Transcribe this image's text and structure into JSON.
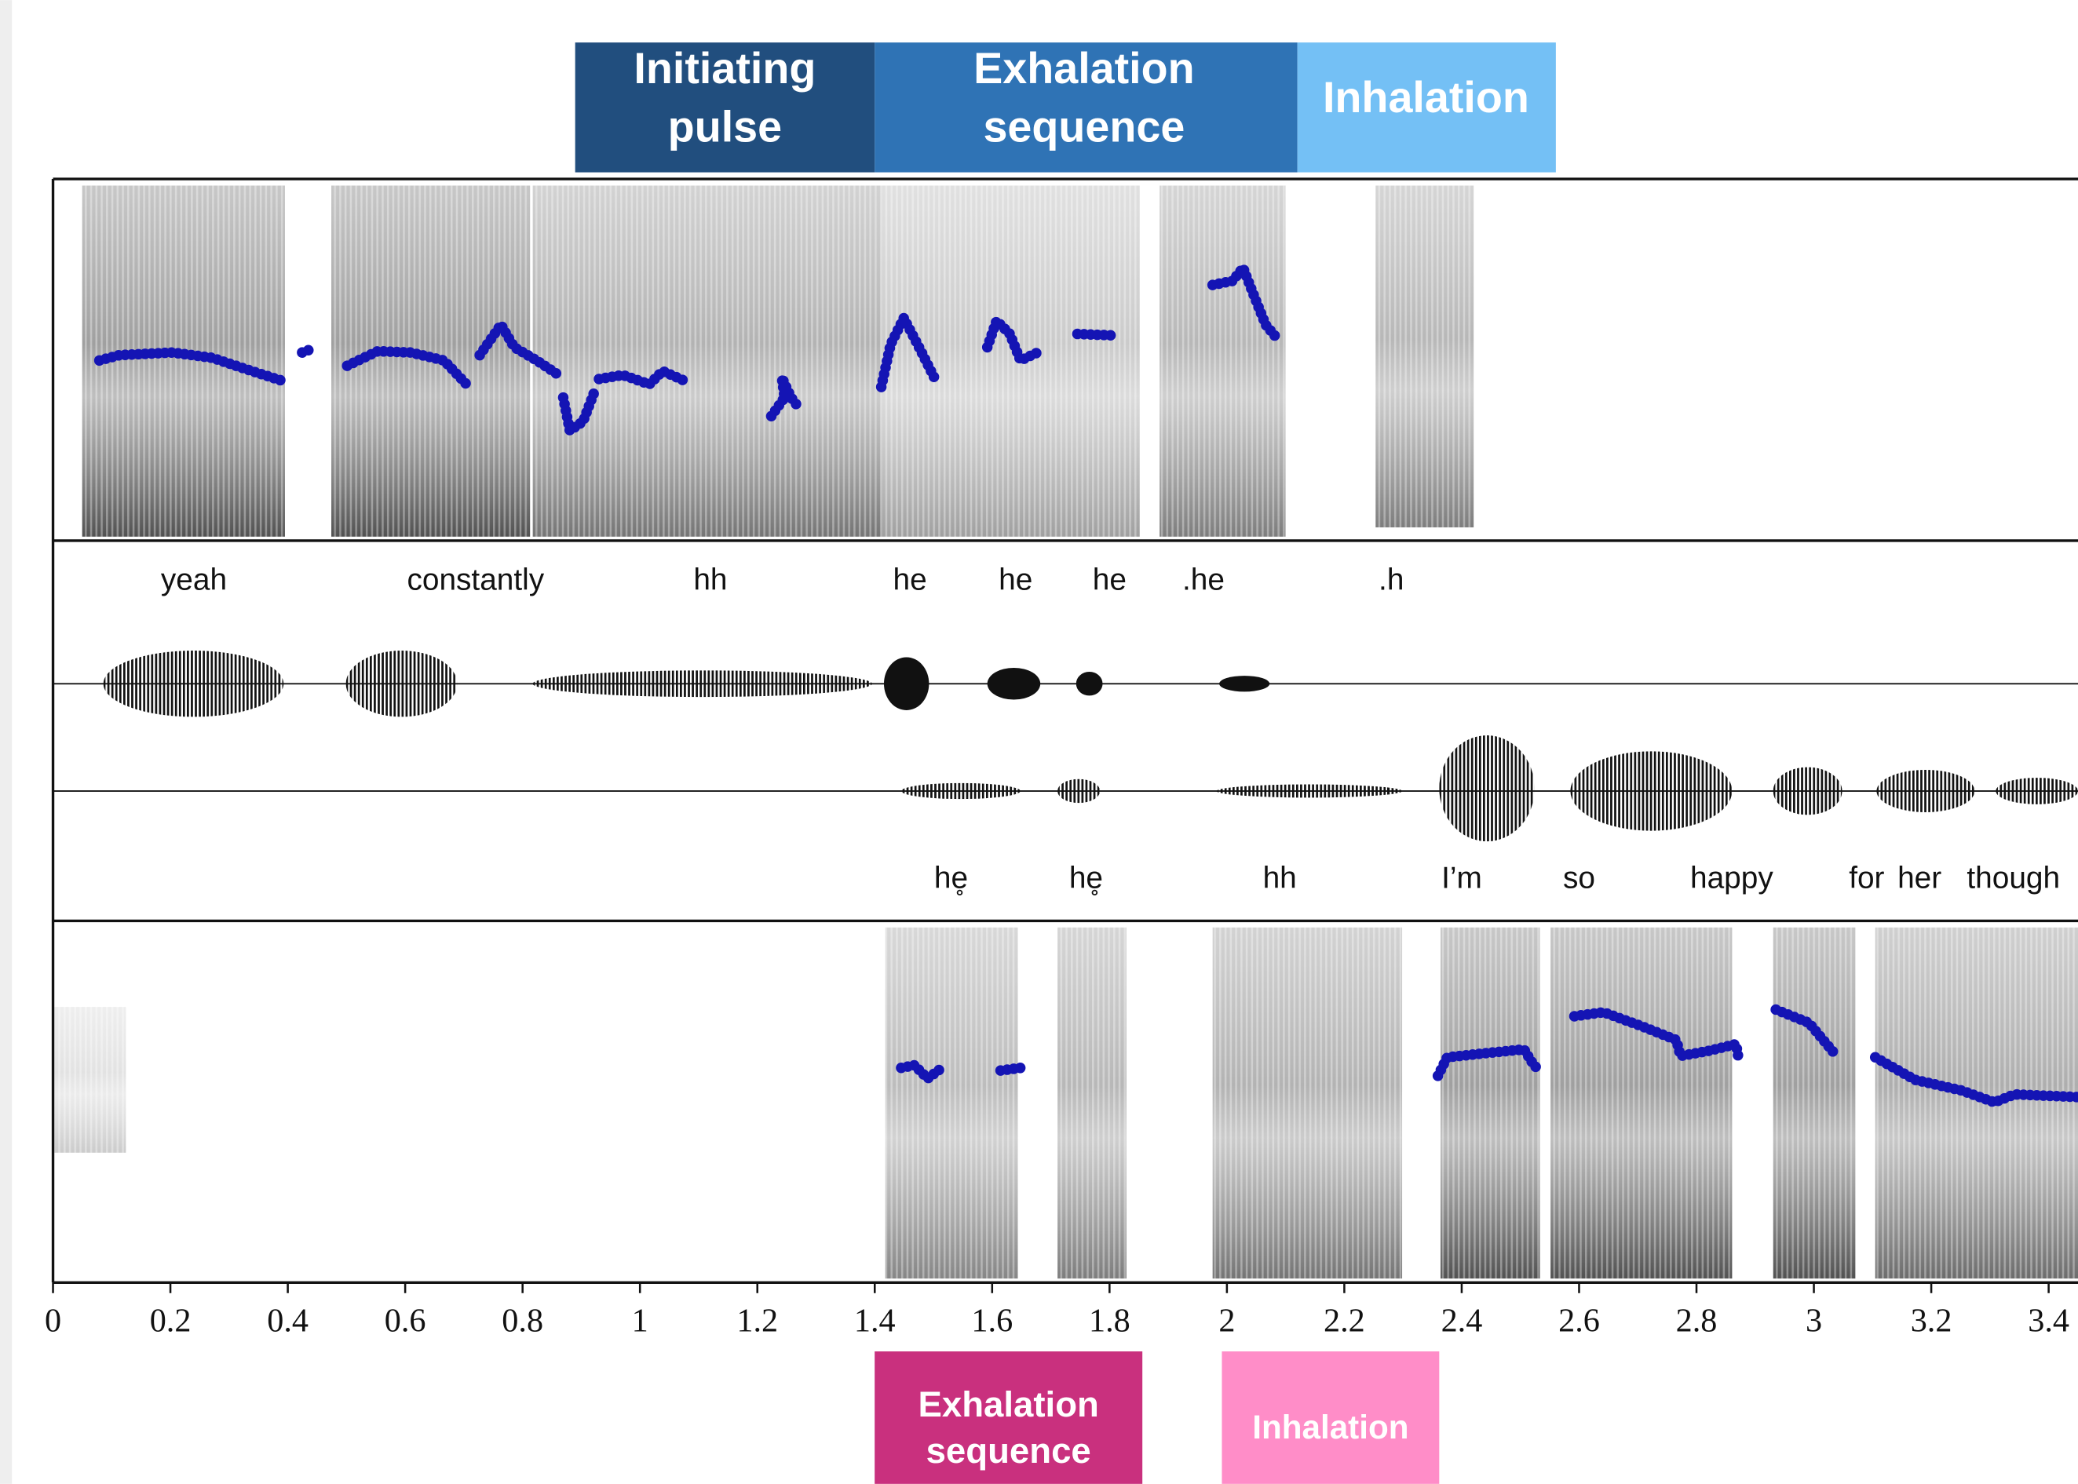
{
  "top_phases": [
    {
      "lines": [
        "Initiating",
        "pulse"
      ]
    },
    {
      "lines": [
        "Exhalation",
        "sequence"
      ]
    },
    {
      "lines": [
        "Inhalation"
      ]
    }
  ],
  "speaker_a": {
    "words": [
      {
        "text": "yeah",
        "time": 0.24
      },
      {
        "text": "constantly",
        "time": 0.72
      },
      {
        "text": "hh",
        "time": 1.12
      },
      {
        "text": "he",
        "time": 1.46
      },
      {
        "text": "he",
        "time": 1.64
      },
      {
        "text": "he",
        "time": 1.8
      },
      {
        "text": ".he",
        "time": 1.96
      },
      {
        "text": ".h",
        "time": 2.28
      }
    ]
  },
  "speaker_b": {
    "words": [
      {
        "text": "he̥",
        "time": 1.53
      },
      {
        "text": "he̥",
        "time": 1.76
      },
      {
        "text": "hh",
        "time": 2.09
      },
      {
        "text": "I’m",
        "time": 2.4
      },
      {
        "text": "so",
        "time": 2.6
      },
      {
        "text": "happy",
        "time": 2.86
      },
      {
        "text": "for",
        "time": 3.09
      },
      {
        "text": "her",
        "time": 3.18
      },
      {
        "text": "though",
        "time": 3.34
      }
    ]
  },
  "time_axis": {
    "xlim": [
      0,
      3.45
    ],
    "xticks": [
      0,
      0.2,
      0.4,
      0.6,
      0.8,
      1,
      1.2,
      1.4,
      1.6,
      1.8,
      2,
      2.2,
      2.4,
      2.6,
      2.8,
      3,
      3.2,
      3.4
    ]
  },
  "bottom_phases": [
    {
      "lines": [
        "Exhalation",
        "sequence"
      ]
    },
    {
      "lines": [
        "Inhalation"
      ]
    }
  ]
}
